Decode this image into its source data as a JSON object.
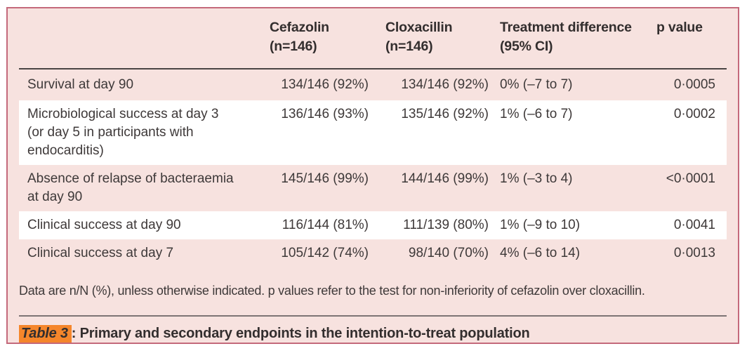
{
  "colors": {
    "card_background": "#f7e2df",
    "card_border": "#c4697b",
    "row_alternate": "#ffffff",
    "text": "#3e3939",
    "header_rule": "#4a4444",
    "caption_rule": "#7d7474",
    "caption_highlight": "#f5862b"
  },
  "table": {
    "column_headers": [
      "",
      "Cefazolin\n(n=146)",
      "Cloxacillin\n(n=146)",
      "Treatment difference\n(95% CI)",
      "p value"
    ],
    "rows": [
      {
        "endpoint": "Survival at day 90",
        "cefazolin": "134/146 (92%)",
        "cloxacillin": "134/146 (92%)",
        "treatment_difference": "0% (–7 to 7)",
        "p_value": "0·0005"
      },
      {
        "endpoint": "Microbiological success at day 3\n(or day 5 in participants with\nendocarditis)",
        "cefazolin": "136/146 (93%)",
        "cloxacillin": "135/146 (92%)",
        "treatment_difference": "1% (–6 to 7)",
        "p_value": "0·0002"
      },
      {
        "endpoint": "Absence of relapse of bacteraemia\nat day 90",
        "cefazolin": "145/146 (99%)",
        "cloxacillin": "144/146 (99%)",
        "treatment_difference": "1% (–3 to 4)",
        "p_value": "<0·0001"
      },
      {
        "endpoint": "Clinical success at day 90",
        "cefazolin": "116/144 (81%)",
        "cloxacillin": "111/139 (80%)",
        "treatment_difference": "1% (–9 to 10)",
        "p_value": "0·0041"
      },
      {
        "endpoint": "Clinical success at day 7",
        "cefazolin": "105/142 (74%)",
        "cloxacillin": "98/140 (70%)",
        "treatment_difference": "4% (–6 to 14)",
        "p_value": "0·0013"
      }
    ]
  },
  "footnote": "Data are n/N (%), unless otherwise indicated. p values refer to the test for non-inferiority of cefazolin over cloxacillin.",
  "caption": {
    "label": "Table 3",
    "separator": ": ",
    "text": "Primary and secondary endpoints in the intention-to-treat population"
  }
}
